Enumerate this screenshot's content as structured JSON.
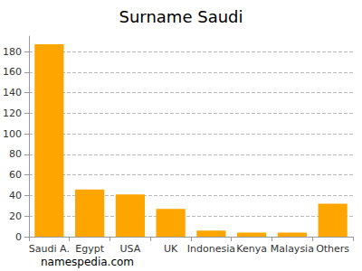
{
  "chart_data": {
    "type": "bar",
    "title": "Surname Saudi",
    "categories": [
      "Saudi A.",
      "Egypt",
      "USA",
      "UK",
      "Indonesia",
      "Kenya",
      "Malaysia",
      "Others"
    ],
    "values": [
      187,
      46,
      41,
      27,
      6,
      4,
      4,
      32
    ],
    "color": "#ffa500",
    "ylim": [
      0,
      195
    ],
    "yticks": [
      0,
      20,
      40,
      60,
      80,
      100,
      120,
      140,
      160,
      180
    ],
    "grid": true,
    "annotations": [
      "namespedia.com"
    ]
  }
}
